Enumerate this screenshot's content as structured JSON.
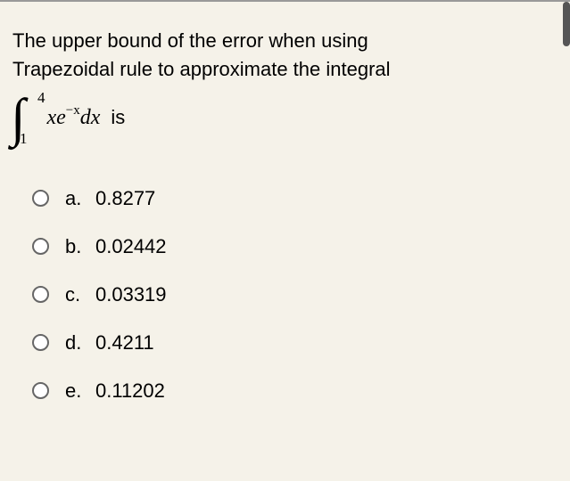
{
  "question": {
    "line1": "The upper bound of the error when using",
    "line2": "Trapezoidal rule to approximate the integral",
    "integral": {
      "lower_limit": "1",
      "upper_limit": "4",
      "integrand_var1": "xe",
      "exponent": "−x",
      "integrand_diff": "dx",
      "trailing": "is"
    }
  },
  "options": [
    {
      "letter": "a.",
      "value": "0.8277"
    },
    {
      "letter": "b.",
      "value": "0.02442"
    },
    {
      "letter": "c.",
      "value": "0.03319"
    },
    {
      "letter": "d.",
      "value": "0.4211"
    },
    {
      "letter": "e.",
      "value": "0.11202"
    }
  ],
  "styling": {
    "background_color": "#f5f2e9",
    "text_color": "#000000",
    "radio_border_color": "#666666",
    "font_size_body": 22,
    "scrollbar_color": "#555555"
  }
}
